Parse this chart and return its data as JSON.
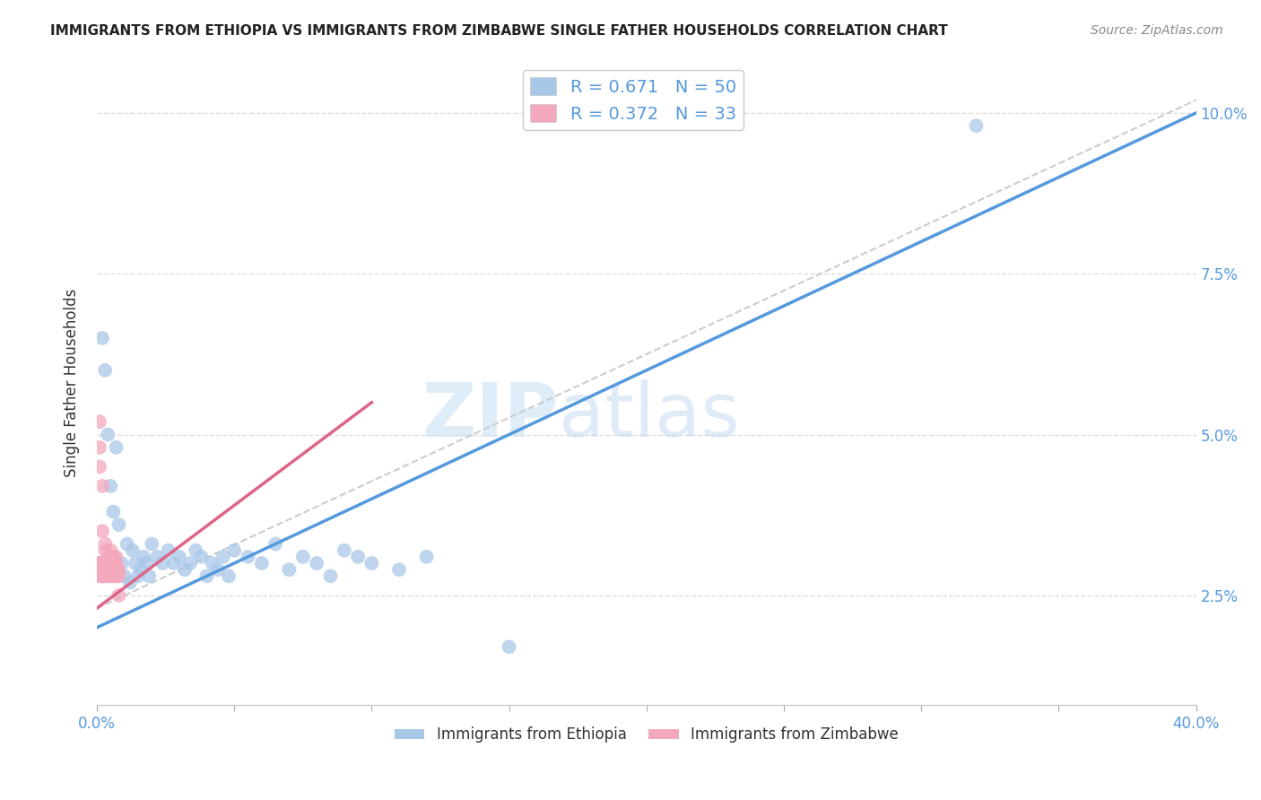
{
  "title": "IMMIGRANTS FROM ETHIOPIA VS IMMIGRANTS FROM ZIMBABWE SINGLE FATHER HOUSEHOLDS CORRELATION CHART",
  "source": "Source: ZipAtlas.com",
  "ylabel": "Single Father Households",
  "legend_bottom": [
    "Immigrants from Ethiopia",
    "Immigrants from Zimbabwe"
  ],
  "r_ethiopia": 0.671,
  "n_ethiopia": 50,
  "r_zimbabwe": 0.372,
  "n_zimbabwe": 33,
  "color_ethiopia": "#a8c8e8",
  "color_zimbabwe": "#f4a8bc",
  "line_color_ethiopia": "#5599dd",
  "line_color_zimbabwe": "#dd6688",
  "ref_line_color": "#cccccc",
  "xlim_min": 0.0,
  "xlim_max": 0.4,
  "ylim_min": 0.008,
  "ylim_max": 0.108,
  "yticks": [
    0.025,
    0.05,
    0.075,
    0.1
  ],
  "ytick_labels": [
    "2.5%",
    "5.0%",
    "7.5%",
    "10.0%"
  ],
  "blue_line_x": [
    0.0,
    0.4
  ],
  "blue_line_y": [
    0.02,
    0.1
  ],
  "pink_line_x": [
    0.0,
    0.1
  ],
  "pink_line_y": [
    0.023,
    0.055
  ],
  "ref_line_x": [
    0.0,
    0.4
  ],
  "ref_line_y": [
    0.023,
    0.102
  ],
  "eth_x": [
    0.002,
    0.003,
    0.004,
    0.005,
    0.006,
    0.007,
    0.008,
    0.009,
    0.01,
    0.011,
    0.012,
    0.013,
    0.014,
    0.015,
    0.016,
    0.017,
    0.018,
    0.019,
    0.02,
    0.022,
    0.024,
    0.026,
    0.028,
    0.03,
    0.032,
    0.034,
    0.036,
    0.038,
    0.04,
    0.042,
    0.044,
    0.046,
    0.048,
    0.05,
    0.055,
    0.06,
    0.065,
    0.07,
    0.075,
    0.08,
    0.085,
    0.09,
    0.095,
    0.1,
    0.11,
    0.12,
    0.001,
    0.002,
    0.32,
    0.15
  ],
  "eth_y": [
    0.065,
    0.06,
    0.05,
    0.042,
    0.038,
    0.048,
    0.036,
    0.03,
    0.028,
    0.033,
    0.027,
    0.032,
    0.03,
    0.028,
    0.029,
    0.031,
    0.03,
    0.028,
    0.033,
    0.031,
    0.03,
    0.032,
    0.03,
    0.031,
    0.029,
    0.03,
    0.032,
    0.031,
    0.028,
    0.03,
    0.029,
    0.031,
    0.028,
    0.032,
    0.031,
    0.03,
    0.033,
    0.029,
    0.031,
    0.03,
    0.028,
    0.032,
    0.031,
    0.03,
    0.029,
    0.031,
    0.03,
    0.028,
    0.098,
    0.017
  ],
  "zim_x": [
    0.0,
    0.0,
    0.001,
    0.001,
    0.001,
    0.001,
    0.002,
    0.002,
    0.002,
    0.002,
    0.003,
    0.003,
    0.003,
    0.003,
    0.004,
    0.004,
    0.004,
    0.004,
    0.005,
    0.005,
    0.005,
    0.005,
    0.006,
    0.006,
    0.006,
    0.006,
    0.007,
    0.007,
    0.007,
    0.007,
    0.008,
    0.008,
    0.008
  ],
  "zim_y": [
    0.03,
    0.028,
    0.052,
    0.048,
    0.045,
    0.03,
    0.042,
    0.035,
    0.03,
    0.028,
    0.033,
    0.03,
    0.028,
    0.032,
    0.031,
    0.029,
    0.028,
    0.03,
    0.032,
    0.03,
    0.028,
    0.031,
    0.03,
    0.029,
    0.028,
    0.031,
    0.03,
    0.029,
    0.028,
    0.031,
    0.029,
    0.028,
    0.025
  ]
}
